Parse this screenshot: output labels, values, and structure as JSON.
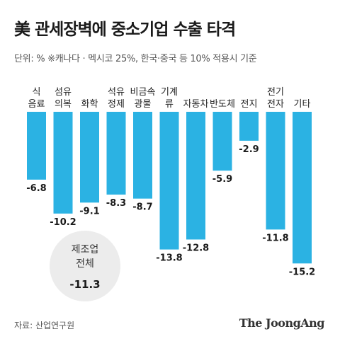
{
  "header": {
    "title": "美 관세장벽에 중소기업 수출 타격",
    "unit_note": "단위: %   ※캐나다 · 멕시코 25%, 한국·중국 등 10% 적용시 기준"
  },
  "footer": {
    "source": "자료: 산업연구원",
    "brand": "The JoongAng"
  },
  "colors": {
    "bar": "#2bb2e3",
    "bubble": "#ececec"
  },
  "total_bubble": {
    "label_line1": "제조업",
    "label_line2": "전체",
    "value": "-11.3"
  },
  "chart_data": {
    "type": "bar",
    "categories": [
      "식\n음료",
      "섬유\n의복",
      "화학",
      "석유\n정제",
      "비금속\n광물",
      "기계\n류",
      "자동차",
      "반도체",
      "전지",
      "전기\n전자",
      "기타"
    ],
    "values": [
      -6.8,
      -10.2,
      -9.1,
      -8.3,
      -8.7,
      -13.8,
      -12.8,
      -5.9,
      -2.9,
      -11.8,
      -15.2
    ],
    "value_labels": [
      "-6.8",
      "-10.2",
      "-9.1",
      "-8.3",
      "-8.7",
      "-13.8",
      "-12.8",
      "-5.9",
      "-2.9",
      "-11.8",
      "-15.2"
    ],
    "title": "美 관세장벽에 중소기업 수출 타격",
    "xlabel": "",
    "ylabel": "",
    "ylim": [
      -16,
      0
    ],
    "grid": false,
    "legend": "none"
  }
}
